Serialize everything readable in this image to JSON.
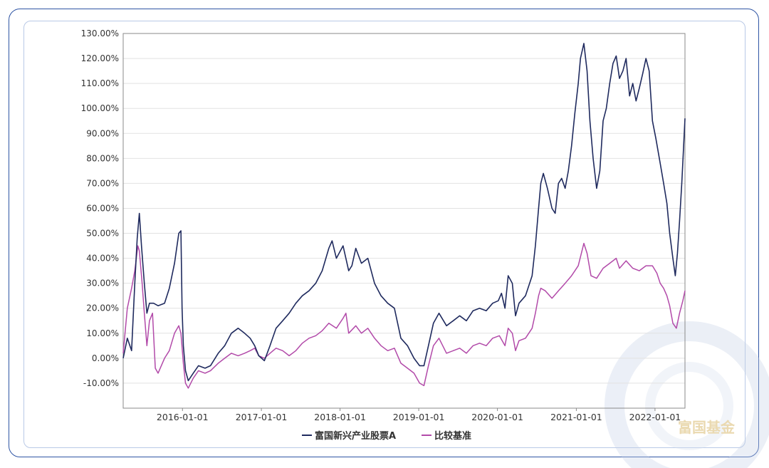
{
  "chart_data": {
    "type": "line",
    "title": "",
    "xlabel": "",
    "ylabel": "",
    "ylim": [
      -20,
      130
    ],
    "y_ticks": [
      "130.00%",
      "120.00%",
      "110.00%",
      "100.00%",
      "90.00%",
      "80.00%",
      "70.00%",
      "60.00%",
      "50.00%",
      "40.00%",
      "30.00%",
      "20.00%",
      "10.00%",
      "0.00%",
      "-10.00%"
    ],
    "x_ticks": [
      "2016-01-01",
      "2017-01-01",
      "2018-01-01",
      "2019-01-01",
      "2020-01-01",
      "2021-01-01",
      "2022-01-01"
    ],
    "xlim": [
      "2015-04-01",
      "2022-05-20"
    ],
    "grid": true,
    "legend_position": "bottom",
    "series": [
      {
        "name": "富国新兴产业股票A",
        "color": "#1f2a5e",
        "points": [
          [
            "2015-04-01",
            0
          ],
          [
            "2015-04-20",
            8
          ],
          [
            "2015-05-10",
            3
          ],
          [
            "2015-05-25",
            30
          ],
          [
            "2015-06-05",
            48
          ],
          [
            "2015-06-15",
            58
          ],
          [
            "2015-06-25",
            45
          ],
          [
            "2015-07-08",
            30
          ],
          [
            "2015-07-20",
            18
          ],
          [
            "2015-08-01",
            22
          ],
          [
            "2015-08-20",
            22
          ],
          [
            "2015-09-10",
            21
          ],
          [
            "2015-10-10",
            22
          ],
          [
            "2015-11-01",
            28
          ],
          [
            "2015-11-25",
            38
          ],
          [
            "2015-12-15",
            50
          ],
          [
            "2015-12-25",
            51
          ],
          [
            "2015-12-30",
            20
          ],
          [
            "2016-01-05",
            5
          ],
          [
            "2016-01-15",
            -5
          ],
          [
            "2016-01-28",
            -9
          ],
          [
            "2016-02-20",
            -6
          ],
          [
            "2016-03-15",
            -3
          ],
          [
            "2016-04-15",
            -4
          ],
          [
            "2016-05-10",
            -3
          ],
          [
            "2016-06-15",
            2
          ],
          [
            "2016-07-15",
            5
          ],
          [
            "2016-08-15",
            10
          ],
          [
            "2016-09-15",
            12
          ],
          [
            "2016-10-15",
            10
          ],
          [
            "2016-11-10",
            8
          ],
          [
            "2016-12-01",
            5
          ],
          [
            "2016-12-20",
            1
          ],
          [
            "2017-01-15",
            -1
          ],
          [
            "2017-02-10",
            5
          ],
          [
            "2017-03-10",
            12
          ],
          [
            "2017-04-10",
            15
          ],
          [
            "2017-05-10",
            18
          ],
          [
            "2017-06-10",
            22
          ],
          [
            "2017-07-10",
            25
          ],
          [
            "2017-08-10",
            27
          ],
          [
            "2017-09-10",
            30
          ],
          [
            "2017-10-10",
            35
          ],
          [
            "2017-11-10",
            44
          ],
          [
            "2017-11-25",
            47
          ],
          [
            "2017-12-15",
            40
          ],
          [
            "2018-01-15",
            45
          ],
          [
            "2018-02-10",
            35
          ],
          [
            "2018-02-25",
            37
          ],
          [
            "2018-03-15",
            44
          ],
          [
            "2018-04-10",
            38
          ],
          [
            "2018-05-10",
            40
          ],
          [
            "2018-06-10",
            30
          ],
          [
            "2018-07-10",
            25
          ],
          [
            "2018-08-10",
            22
          ],
          [
            "2018-09-10",
            20
          ],
          [
            "2018-10-10",
            8
          ],
          [
            "2018-11-10",
            5
          ],
          [
            "2018-12-10",
            0
          ],
          [
            "2019-01-05",
            -3
          ],
          [
            "2019-01-25",
            -3
          ],
          [
            "2019-02-15",
            5
          ],
          [
            "2019-03-10",
            14
          ],
          [
            "2019-04-05",
            18
          ],
          [
            "2019-05-10",
            13
          ],
          [
            "2019-06-10",
            15
          ],
          [
            "2019-07-10",
            17
          ],
          [
            "2019-08-10",
            15
          ],
          [
            "2019-09-10",
            19
          ],
          [
            "2019-10-10",
            20
          ],
          [
            "2019-11-10",
            19
          ],
          [
            "2019-12-10",
            22
          ],
          [
            "2020-01-05",
            23
          ],
          [
            "2020-01-20",
            26
          ],
          [
            "2020-02-05",
            20
          ],
          [
            "2020-02-20",
            33
          ],
          [
            "2020-03-10",
            30
          ],
          [
            "2020-03-25",
            17
          ],
          [
            "2020-04-10",
            22
          ],
          [
            "2020-05-10",
            25
          ],
          [
            "2020-06-10",
            33
          ],
          [
            "2020-06-25",
            45
          ],
          [
            "2020-07-10",
            60
          ],
          [
            "2020-07-20",
            70
          ],
          [
            "2020-08-01",
            74
          ],
          [
            "2020-08-20",
            68
          ],
          [
            "2020-09-10",
            60
          ],
          [
            "2020-09-25",
            58
          ],
          [
            "2020-10-10",
            70
          ],
          [
            "2020-10-25",
            72
          ],
          [
            "2020-11-10",
            68
          ],
          [
            "2020-11-25",
            75
          ],
          [
            "2020-12-10",
            85
          ],
          [
            "2020-12-25",
            98
          ],
          [
            "2021-01-10",
            110
          ],
          [
            "2021-01-20",
            120
          ],
          [
            "2021-02-05",
            126
          ],
          [
            "2021-02-20",
            115
          ],
          [
            "2021-03-05",
            95
          ],
          [
            "2021-03-20",
            80
          ],
          [
            "2021-04-05",
            68
          ],
          [
            "2021-04-20",
            75
          ],
          [
            "2021-05-05",
            95
          ],
          [
            "2021-05-20",
            100
          ],
          [
            "2021-06-05",
            110
          ],
          [
            "2021-06-20",
            118
          ],
          [
            "2021-07-05",
            121
          ],
          [
            "2021-07-20",
            112
          ],
          [
            "2021-08-05",
            115
          ],
          [
            "2021-08-20",
            120
          ],
          [
            "2021-09-05",
            105
          ],
          [
            "2021-09-20",
            110
          ],
          [
            "2021-10-05",
            103
          ],
          [
            "2021-10-20",
            108
          ],
          [
            "2021-11-05",
            114
          ],
          [
            "2021-11-20",
            120
          ],
          [
            "2021-12-05",
            115
          ],
          [
            "2021-12-20",
            95
          ],
          [
            "2022-01-05",
            88
          ],
          [
            "2022-01-25",
            78
          ],
          [
            "2022-02-10",
            70
          ],
          [
            "2022-02-25",
            62
          ],
          [
            "2022-03-10",
            50
          ],
          [
            "2022-03-25",
            40
          ],
          [
            "2022-04-05",
            33
          ],
          [
            "2022-04-15",
            42
          ],
          [
            "2022-04-25",
            55
          ],
          [
            "2022-05-05",
            70
          ],
          [
            "2022-05-12",
            82
          ],
          [
            "2022-05-20",
            96
          ]
        ]
      },
      {
        "name": "比较基准",
        "color": "#b24aa9",
        "points": [
          [
            "2015-04-01",
            2
          ],
          [
            "2015-04-20",
            20
          ],
          [
            "2015-05-10",
            28
          ],
          [
            "2015-05-25",
            35
          ],
          [
            "2015-06-08",
            45
          ],
          [
            "2015-06-15",
            43
          ],
          [
            "2015-06-28",
            30
          ],
          [
            "2015-07-08",
            18
          ],
          [
            "2015-07-20",
            5
          ],
          [
            "2015-08-01",
            15
          ],
          [
            "2015-08-15",
            18
          ],
          [
            "2015-08-28",
            -4
          ],
          [
            "2015-09-10",
            -6
          ],
          [
            "2015-10-10",
            0
          ],
          [
            "2015-11-01",
            3
          ],
          [
            "2015-11-25",
            10
          ],
          [
            "2015-12-15",
            13
          ],
          [
            "2015-12-25",
            10
          ],
          [
            "2016-01-05",
            -2
          ],
          [
            "2016-01-15",
            -10
          ],
          [
            "2016-01-28",
            -12
          ],
          [
            "2016-02-20",
            -8
          ],
          [
            "2016-03-15",
            -5
          ],
          [
            "2016-04-15",
            -6
          ],
          [
            "2016-05-10",
            -5
          ],
          [
            "2016-06-15",
            -2
          ],
          [
            "2016-07-15",
            0
          ],
          [
            "2016-08-15",
            2
          ],
          [
            "2016-09-15",
            1
          ],
          [
            "2016-10-15",
            2
          ],
          [
            "2016-11-10",
            3
          ],
          [
            "2016-12-01",
            4
          ],
          [
            "2016-12-20",
            1
          ],
          [
            "2017-01-15",
            0
          ],
          [
            "2017-02-10",
            2
          ],
          [
            "2017-03-10",
            4
          ],
          [
            "2017-04-10",
            3
          ],
          [
            "2017-05-10",
            1
          ],
          [
            "2017-06-10",
            3
          ],
          [
            "2017-07-10",
            6
          ],
          [
            "2017-08-10",
            8
          ],
          [
            "2017-09-10",
            9
          ],
          [
            "2017-10-10",
            11
          ],
          [
            "2017-11-10",
            14
          ],
          [
            "2017-12-15",
            12
          ],
          [
            "2018-01-15",
            16
          ],
          [
            "2018-01-28",
            18
          ],
          [
            "2018-02-10",
            10
          ],
          [
            "2018-03-15",
            13
          ],
          [
            "2018-04-10",
            10
          ],
          [
            "2018-05-10",
            12
          ],
          [
            "2018-06-10",
            8
          ],
          [
            "2018-07-10",
            5
          ],
          [
            "2018-08-10",
            3
          ],
          [
            "2018-09-10",
            4
          ],
          [
            "2018-10-10",
            -2
          ],
          [
            "2018-11-10",
            -4
          ],
          [
            "2018-12-10",
            -6
          ],
          [
            "2019-01-05",
            -10
          ],
          [
            "2019-01-25",
            -11
          ],
          [
            "2019-02-15",
            -3
          ],
          [
            "2019-03-10",
            5
          ],
          [
            "2019-04-05",
            8
          ],
          [
            "2019-05-10",
            2
          ],
          [
            "2019-06-10",
            3
          ],
          [
            "2019-07-10",
            4
          ],
          [
            "2019-08-10",
            2
          ],
          [
            "2019-09-10",
            5
          ],
          [
            "2019-10-10",
            6
          ],
          [
            "2019-11-10",
            5
          ],
          [
            "2019-12-10",
            8
          ],
          [
            "2020-01-10",
            9
          ],
          [
            "2020-02-05",
            5
          ],
          [
            "2020-02-20",
            12
          ],
          [
            "2020-03-10",
            10
          ],
          [
            "2020-03-25",
            3
          ],
          [
            "2020-04-10",
            7
          ],
          [
            "2020-05-10",
            8
          ],
          [
            "2020-06-10",
            12
          ],
          [
            "2020-06-25",
            18
          ],
          [
            "2020-07-10",
            25
          ],
          [
            "2020-07-20",
            28
          ],
          [
            "2020-08-10",
            27
          ],
          [
            "2020-09-10",
            24
          ],
          [
            "2020-10-10",
            27
          ],
          [
            "2020-11-10",
            30
          ],
          [
            "2020-12-10",
            33
          ],
          [
            "2021-01-10",
            37
          ],
          [
            "2021-02-05",
            46
          ],
          [
            "2021-02-20",
            42
          ],
          [
            "2021-03-10",
            33
          ],
          [
            "2021-04-05",
            32
          ],
          [
            "2021-05-05",
            36
          ],
          [
            "2021-06-05",
            38
          ],
          [
            "2021-07-05",
            40
          ],
          [
            "2021-07-20",
            36
          ],
          [
            "2021-08-20",
            39
          ],
          [
            "2021-09-20",
            36
          ],
          [
            "2021-10-20",
            35
          ],
          [
            "2021-11-20",
            37
          ],
          [
            "2021-12-20",
            37
          ],
          [
            "2022-01-10",
            34
          ],
          [
            "2022-01-25",
            30
          ],
          [
            "2022-02-10",
            28
          ],
          [
            "2022-02-25",
            25
          ],
          [
            "2022-03-10",
            21
          ],
          [
            "2022-03-25",
            14
          ],
          [
            "2022-04-10",
            12
          ],
          [
            "2022-04-25",
            18
          ],
          [
            "2022-05-10",
            23
          ],
          [
            "2022-05-20",
            27
          ]
        ]
      }
    ]
  },
  "watermark": {
    "text": "富国基金"
  }
}
